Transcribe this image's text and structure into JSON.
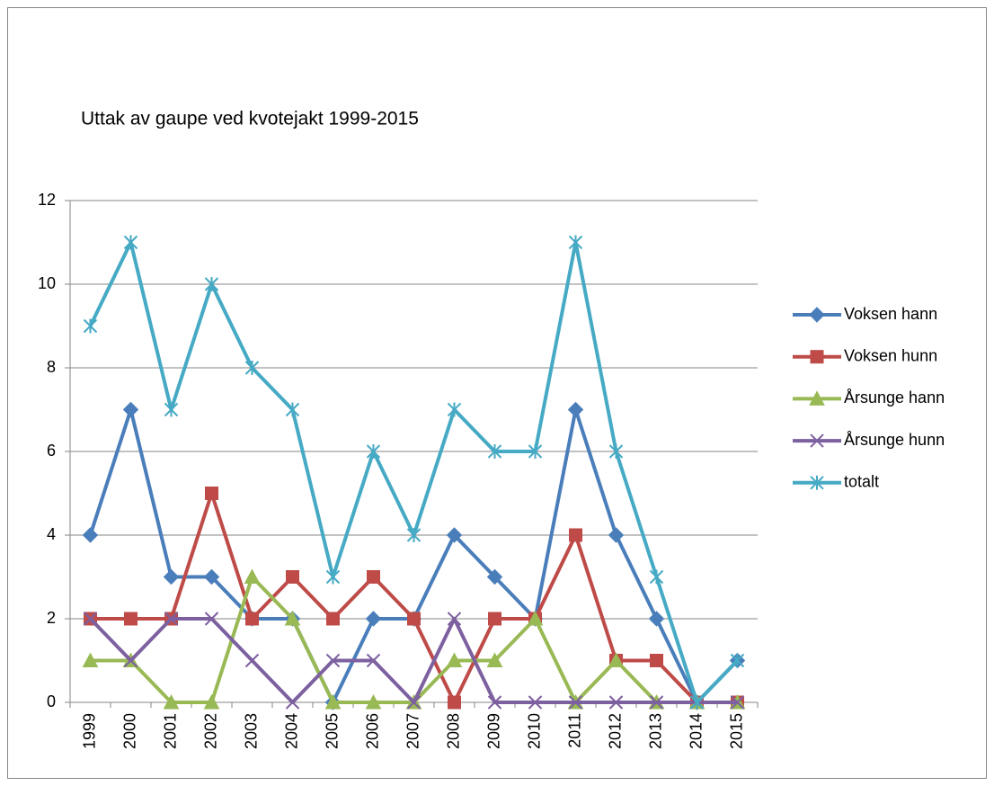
{
  "chart_data": {
    "type": "line",
    "title": "Uttak av gaupe ved kvotejakt 1999-2015",
    "categories": [
      "1999",
      "2000",
      "2001",
      "2002",
      "2003",
      "2004",
      "2005",
      "2006",
      "2007",
      "2008",
      "2009",
      "2010",
      "2011",
      "2012",
      "2013",
      "2014",
      "2015"
    ],
    "series": [
      {
        "name": "Voksen hann",
        "color": "#4a7ebb",
        "marker": "diamond",
        "values": [
          4,
          7,
          3,
          3,
          2,
          2,
          0,
          2,
          2,
          4,
          3,
          2,
          7,
          4,
          2,
          0,
          1
        ]
      },
      {
        "name": "Voksen hunn",
        "color": "#be4b48",
        "marker": "square",
        "values": [
          2,
          2,
          2,
          5,
          2,
          3,
          2,
          3,
          2,
          0,
          2,
          2,
          4,
          1,
          1,
          0,
          0
        ]
      },
      {
        "name": "Årsunge hann",
        "color": "#98b954",
        "marker": "triangle",
        "values": [
          1,
          1,
          0,
          0,
          3,
          2,
          0,
          0,
          0,
          1,
          1,
          2,
          0,
          1,
          0,
          0,
          0
        ]
      },
      {
        "name": "Årsunge hunn",
        "color": "#7d60a0",
        "marker": "x",
        "values": [
          2,
          1,
          2,
          2,
          1,
          0,
          1,
          1,
          0,
          2,
          0,
          0,
          0,
          0,
          0,
          0,
          0
        ]
      },
      {
        "name": "totalt",
        "color": "#46aac5",
        "marker": "star",
        "values": [
          9,
          11,
          7,
          10,
          8,
          7,
          3,
          6,
          4,
          7,
          6,
          6,
          11,
          6,
          3,
          0,
          1
        ]
      }
    ],
    "ylim": [
      0,
      12
    ],
    "yticks": [
      0,
      2,
      4,
      6,
      8,
      10,
      12
    ],
    "grid": true,
    "legend": "right"
  }
}
